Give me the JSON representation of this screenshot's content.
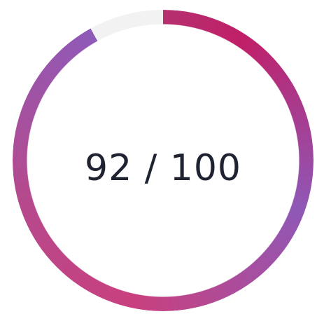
{
  "progress": {
    "value": 92,
    "max": 100,
    "label": "92 / 100"
  }
}
